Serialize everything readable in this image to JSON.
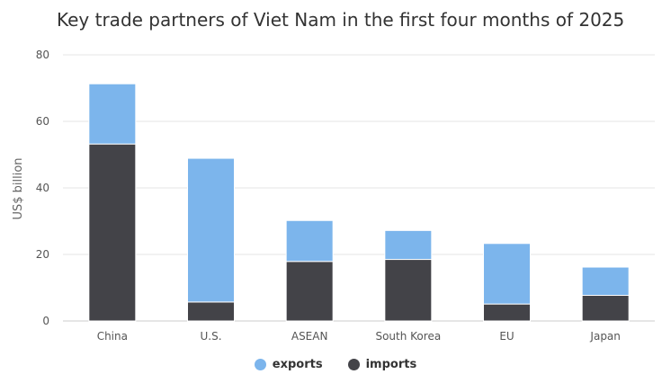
{
  "chart_data": {
    "type": "bar",
    "stacked": true,
    "title": "Key trade partners of Viet Nam in the first four months of 2025",
    "xlabel": "",
    "ylabel": "US$ billion",
    "ylim": [
      0,
      80
    ],
    "yticks": [
      0,
      20,
      40,
      60,
      80
    ],
    "grid": true,
    "legend_position": "bottom-center",
    "categories": [
      "China",
      "U.S.",
      "ASEAN",
      "South Korea",
      "EU",
      "Japan"
    ],
    "series": [
      {
        "name": "imports",
        "color": "#434348",
        "values": [
          53.2,
          5.7,
          17.9,
          18.5,
          5.1,
          7.7
        ]
      },
      {
        "name": "exports",
        "color": "#7cb5ec",
        "values": [
          18.1,
          43.2,
          12.3,
          8.7,
          18.2,
          8.5
        ]
      }
    ],
    "legend_order": [
      "exports",
      "imports"
    ]
  }
}
